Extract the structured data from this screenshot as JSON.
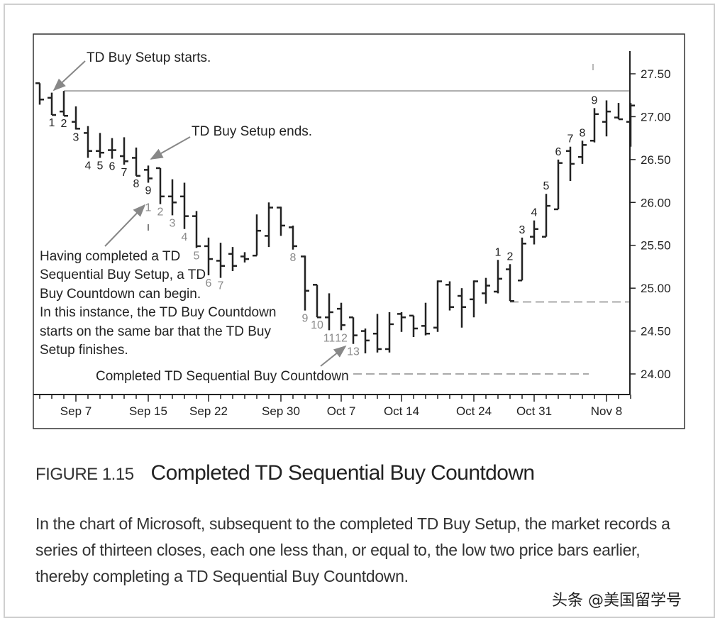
{
  "chart_data": {
    "type": "ohlc",
    "title": "",
    "y_ticks": [
      "27.50",
      "27.00",
      "26.50",
      "26.00",
      "25.50",
      "25.00",
      "24.50",
      "24.00"
    ],
    "y_tick_values": [
      27.5,
      27.0,
      26.5,
      26.0,
      25.5,
      25.0,
      24.5,
      24.0
    ],
    "ylim": [
      23.8,
      27.7
    ],
    "x_ticks": [
      {
        "label": "Sep 7",
        "bar": 3
      },
      {
        "label": "Sep 15",
        "bar": 9
      },
      {
        "label": "Sep 22",
        "bar": 14
      },
      {
        "label": "Sep 30",
        "bar": 20
      },
      {
        "label": "Oct 7",
        "bar": 25
      },
      {
        "label": "Oct 14",
        "bar": 30
      },
      {
        "label": "Oct 24",
        "bar": 36
      },
      {
        "label": "Oct 31",
        "bar": 41
      },
      {
        "label": "Nov 8",
        "bar": 47
      }
    ],
    "bars_ohlc": [
      [
        27.39,
        27.39,
        27.14,
        27.2
      ],
      [
        27.22,
        27.28,
        27.02,
        27.02
      ],
      [
        27.06,
        27.3,
        27.01,
        27.01
      ],
      [
        26.94,
        27.12,
        26.85,
        26.86
      ],
      [
        26.81,
        26.89,
        26.52,
        26.6
      ],
      [
        26.6,
        26.81,
        26.52,
        26.58
      ],
      [
        26.61,
        26.75,
        26.51,
        26.61
      ],
      [
        26.54,
        26.76,
        26.44,
        26.48
      ],
      [
        26.52,
        26.64,
        26.31,
        26.31
      ],
      [
        26.38,
        26.43,
        26.23,
        26.28
      ],
      [
        26.4,
        26.4,
        25.98,
        26.07
      ],
      [
        26.07,
        26.27,
        25.85,
        26.0
      ],
      [
        26.07,
        26.23,
        25.69,
        25.84
      ],
      [
        25.84,
        25.9,
        25.47,
        25.49
      ],
      [
        25.49,
        25.59,
        25.15,
        25.34
      ],
      [
        25.32,
        25.53,
        25.12,
        25.26
      ],
      [
        25.4,
        25.48,
        25.2,
        25.26
      ],
      [
        25.37,
        25.42,
        25.3,
        25.34
      ],
      [
        25.38,
        25.86,
        25.38,
        25.67
      ],
      [
        25.61,
        26.0,
        25.48,
        25.94
      ],
      [
        25.94,
        25.95,
        25.61,
        25.73
      ],
      [
        25.71,
        25.73,
        25.45,
        25.49
      ],
      [
        25.37,
        25.38,
        24.74,
        24.97
      ],
      [
        25.04,
        25.04,
        24.66,
        24.66
      ],
      [
        24.66,
        24.94,
        24.51,
        24.72
      ],
      [
        24.76,
        24.83,
        24.51,
        24.57
      ],
      [
        24.66,
        24.66,
        24.35,
        24.45
      ],
      [
        24.5,
        24.53,
        24.24,
        24.39
      ],
      [
        24.47,
        24.7,
        24.25,
        24.29
      ],
      [
        24.29,
        24.72,
        24.25,
        24.58
      ],
      [
        24.7,
        24.72,
        24.49,
        24.66
      ],
      [
        24.68,
        24.68,
        24.43,
        24.53
      ],
      [
        24.56,
        24.83,
        24.45,
        24.47
      ],
      [
        24.54,
        25.09,
        24.49,
        25.08
      ],
      [
        25.04,
        25.08,
        24.74,
        24.78
      ],
      [
        24.91,
        25.0,
        24.54,
        24.78
      ],
      [
        24.87,
        25.09,
        24.66,
        25.08
      ],
      [
        24.94,
        25.12,
        24.82,
        25.03
      ],
      [
        24.96,
        25.33,
        24.94,
        25.11
      ],
      [
        25.22,
        25.28,
        24.85,
        24.85
      ],
      [
        25.09,
        25.59,
        25.09,
        25.52
      ],
      [
        25.6,
        25.79,
        25.51,
        25.69
      ],
      [
        25.6,
        26.1,
        25.6,
        25.96
      ],
      [
        25.92,
        26.5,
        25.92,
        26.46
      ],
      [
        26.6,
        26.65,
        26.25,
        26.45
      ],
      [
        26.53,
        26.72,
        26.45,
        26.67
      ],
      [
        26.72,
        27.1,
        26.7,
        27.03
      ],
      [
        26.94,
        27.19,
        26.77,
        27.06
      ],
      [
        26.99,
        27.16,
        26.97,
        26.97
      ],
      [
        26.94,
        27.16,
        26.65,
        27.13
      ]
    ],
    "buy_setup_labels": [
      {
        "bar": 1,
        "label": "1"
      },
      {
        "bar": 2,
        "label": "2"
      },
      {
        "bar": 3,
        "label": "3"
      },
      {
        "bar": 4,
        "label": "4"
      },
      {
        "bar": 5,
        "label": "5"
      },
      {
        "bar": 6,
        "label": "6"
      },
      {
        "bar": 7,
        "label": "7"
      },
      {
        "bar": 8,
        "label": "8"
      },
      {
        "bar": 9,
        "label": "9"
      }
    ],
    "buy_countdown_labels": [
      {
        "bar": 9,
        "label": "1"
      },
      {
        "bar": 10,
        "label": "2"
      },
      {
        "bar": 11,
        "label": "3"
      },
      {
        "bar": 12,
        "label": "4"
      },
      {
        "bar": 13,
        "label": "5"
      },
      {
        "bar": 14,
        "label": "6"
      },
      {
        "bar": 15,
        "label": "7"
      },
      {
        "bar": 21,
        "label": "8"
      },
      {
        "bar": 22,
        "label": "9"
      },
      {
        "bar": 23,
        "label": "10"
      },
      {
        "bar": 24,
        "label": "11"
      },
      {
        "bar": 25,
        "label": "12"
      },
      {
        "bar": 26,
        "label": "13"
      }
    ],
    "sell_setup_labels": [
      {
        "bar": 38,
        "label": "1"
      },
      {
        "bar": 39,
        "label": "2"
      },
      {
        "bar": 40,
        "label": "3"
      },
      {
        "bar": 41,
        "label": "4"
      },
      {
        "bar": 42,
        "label": "5"
      },
      {
        "bar": 43,
        "label": "6"
      },
      {
        "bar": 44,
        "label": "7"
      },
      {
        "bar": 45,
        "label": "8"
      },
      {
        "bar": 46,
        "label": "9"
      }
    ],
    "levels": [
      {
        "price": 27.3,
        "style": "solid",
        "from_bar": 2
      },
      {
        "price": 24.84,
        "style": "dashed",
        "from_bar": 39
      },
      {
        "price": 24.0,
        "style": "dashed",
        "from_bar": 26,
        "to_bar": 46
      }
    ],
    "colors": {
      "bars": "#222222",
      "countdown_labels": "#8a8a8a",
      "lines": "#aaaaaa"
    }
  },
  "annotations": {
    "setup_starts": "TD Buy Setup starts.",
    "setup_ends": "TD Buy Setup ends.",
    "countdown_note": [
      "Having completed a TD",
      "Sequential Buy Setup, a TD",
      "Buy Countdown can begin.",
      "In this instance, the TD Buy Countdown",
      "starts on the same bar that the TD Buy",
      "Setup finishes."
    ],
    "completed": "Completed TD Sequential Buy Countdown"
  },
  "figure": {
    "number": "FIGURE 1.15",
    "title": "Completed TD Sequential Buy Countdown",
    "caption": "In the chart of Microsoft, subsequent to the completed TD Buy Setup, the market records a series of thirteen closes, each one less than, or equal to, the low two price bars earlier, thereby completing a TD Sequential Buy Countdown."
  },
  "watermark": "头条 @美国留学号"
}
